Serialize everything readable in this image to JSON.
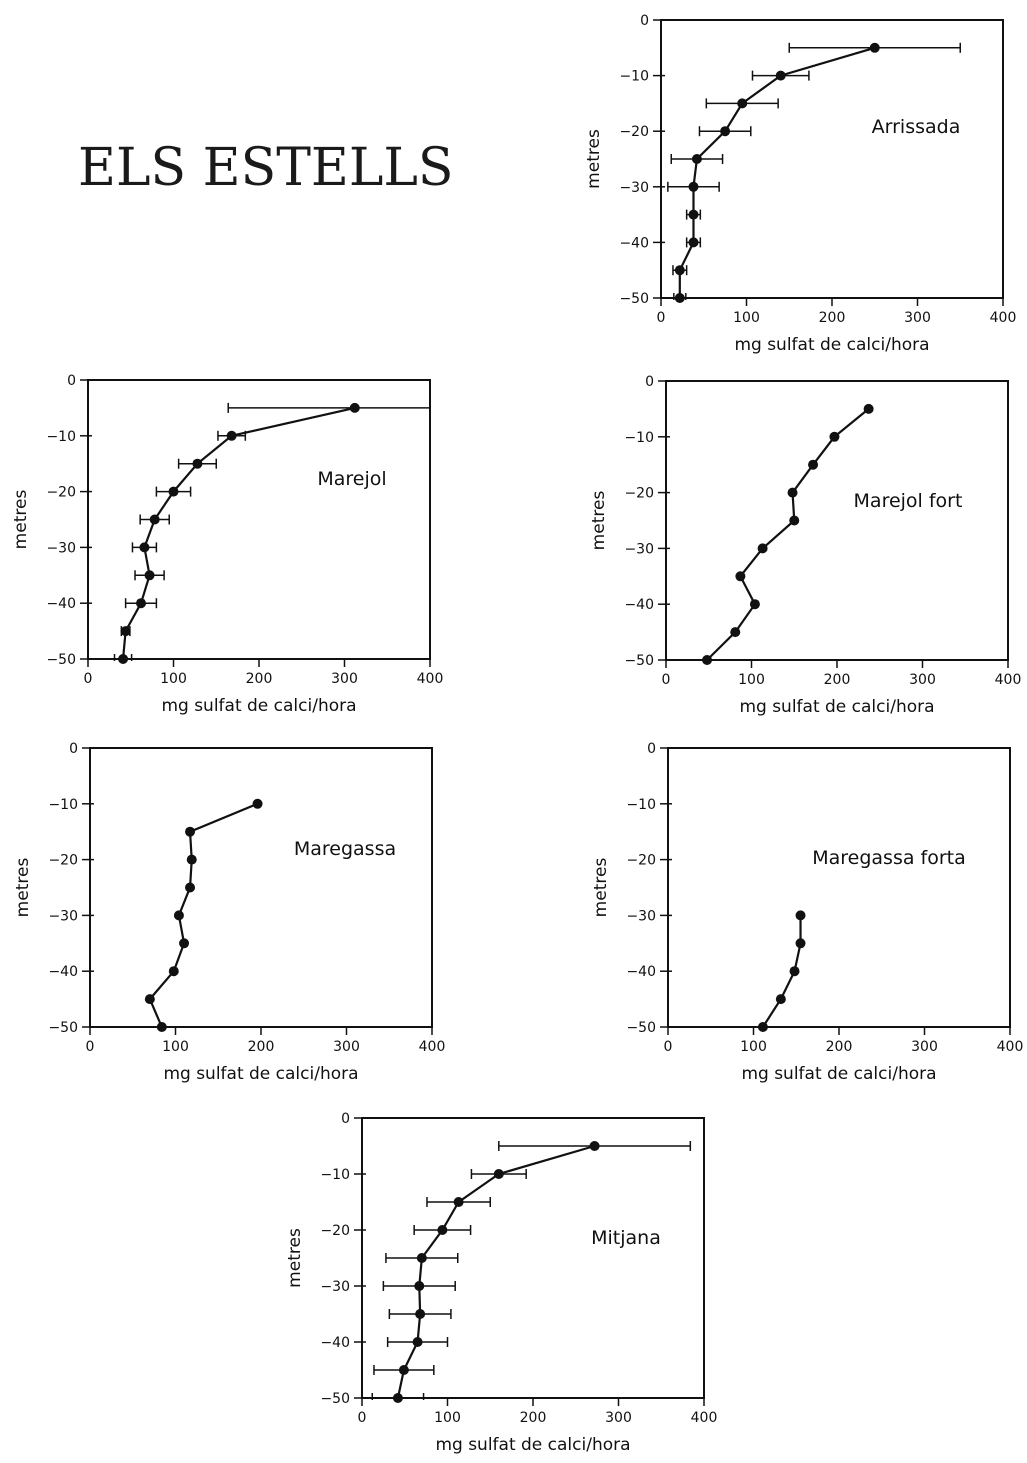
{
  "page": {
    "title": "ELS ESTELLS"
  },
  "chart_data": [
    {
      "type": "line",
      "title": "Arrissada",
      "xlabel": "mg sulfat de calci/hora",
      "ylabel": "metres",
      "xlim": [
        0,
        400
      ],
      "ylim": [
        -50,
        0
      ],
      "xticks": [
        0,
        100,
        200,
        300,
        400
      ],
      "yticks": [
        0,
        -10,
        -20,
        -30,
        -40,
        -50
      ],
      "grid": false,
      "points": [
        {
          "x": 250,
          "y": -5,
          "err": 100
        },
        {
          "x": 140,
          "y": -10,
          "err": 33
        },
        {
          "x": 95,
          "y": -15,
          "err": 42
        },
        {
          "x": 75,
          "y": -20,
          "err": 30
        },
        {
          "x": 42,
          "y": -25,
          "err": 30
        },
        {
          "x": 38,
          "y": -30,
          "err": 30
        },
        {
          "x": 38,
          "y": -35,
          "err": 8
        },
        {
          "x": 38,
          "y": -40,
          "err": 8
        },
        {
          "x": 22,
          "y": -45,
          "err": 8
        },
        {
          "x": 22,
          "y": -50,
          "err": 7
        }
      ]
    },
    {
      "type": "line",
      "title": "Marejol",
      "xlabel": "mg sulfat de calci/hora",
      "ylabel": "metres",
      "xlim": [
        0,
        400
      ],
      "ylim": [
        -50,
        0
      ],
      "xticks": [
        0,
        100,
        200,
        300,
        400
      ],
      "yticks": [
        0,
        -10,
        -20,
        -30,
        -40,
        -50
      ],
      "grid": false,
      "points": [
        {
          "x": 312,
          "y": -5,
          "err": 148
        },
        {
          "x": 168,
          "y": -10,
          "err": 16
        },
        {
          "x": 128,
          "y": -15,
          "err": 22
        },
        {
          "x": 100,
          "y": -20,
          "err": 20
        },
        {
          "x": 78,
          "y": -25,
          "err": 17
        },
        {
          "x": 66,
          "y": -30,
          "err": 14
        },
        {
          "x": 72,
          "y": -35,
          "err": 17
        },
        {
          "x": 62,
          "y": -40,
          "err": 18
        },
        {
          "x": 44,
          "y": -45,
          "err": 5
        },
        {
          "x": 41,
          "y": -50,
          "err": 10
        }
      ]
    },
    {
      "type": "line",
      "title": "Marejol fort",
      "xlabel": "mg sulfat de calci/hora",
      "ylabel": "metres",
      "xlim": [
        0,
        400
      ],
      "ylim": [
        -50,
        0
      ],
      "xticks": [
        0,
        100,
        200,
        300,
        400
      ],
      "yticks": [
        0,
        -10,
        -20,
        -30,
        -40,
        -50
      ],
      "grid": false,
      "points": [
        {
          "x": 237,
          "y": -5
        },
        {
          "x": 197,
          "y": -10
        },
        {
          "x": 172,
          "y": -15
        },
        {
          "x": 148,
          "y": -20
        },
        {
          "x": 150,
          "y": -25
        },
        {
          "x": 113,
          "y": -30
        },
        {
          "x": 87,
          "y": -35
        },
        {
          "x": 104,
          "y": -40
        },
        {
          "x": 81,
          "y": -45
        },
        {
          "x": 48,
          "y": -50
        }
      ]
    },
    {
      "type": "line",
      "title": "Maregassa",
      "xlabel": "mg sulfat de calci/hora",
      "ylabel": "metres",
      "xlim": [
        0,
        400
      ],
      "ylim": [
        -50,
        0
      ],
      "xticks": [
        0,
        100,
        200,
        300,
        400
      ],
      "yticks": [
        0,
        -10,
        -20,
        -30,
        -40,
        -50
      ],
      "grid": false,
      "points": [
        {
          "x": 196,
          "y": -10
        },
        {
          "x": 117,
          "y": -15
        },
        {
          "x": 119,
          "y": -20
        },
        {
          "x": 117,
          "y": -25
        },
        {
          "x": 104,
          "y": -30
        },
        {
          "x": 110,
          "y": -35
        },
        {
          "x": 98,
          "y": -40
        },
        {
          "x": 70,
          "y": -45
        },
        {
          "x": 84,
          "y": -50
        }
      ]
    },
    {
      "type": "line",
      "title": "Maregassa forta",
      "xlabel": "mg sulfat de calci/hora",
      "ylabel": "metres",
      "xlim": [
        0,
        400
      ],
      "ylim": [
        -50,
        0
      ],
      "xticks": [
        0,
        100,
        200,
        300,
        400
      ],
      "yticks": [
        0,
        -10,
        -20,
        -30,
        -40,
        -50
      ],
      "grid": false,
      "points": [
        {
          "x": 155,
          "y": -30
        },
        {
          "x": 155,
          "y": -35
        },
        {
          "x": 148,
          "y": -40
        },
        {
          "x": 132,
          "y": -45
        },
        {
          "x": 111,
          "y": -50
        }
      ]
    },
    {
      "type": "line",
      "title": "Mitjana",
      "xlabel": "mg sulfat de calci/hora",
      "ylabel": "metres",
      "xlim": [
        0,
        400
      ],
      "ylim": [
        -50,
        0
      ],
      "xticks": [
        0,
        100,
        200,
        300,
        400
      ],
      "yticks": [
        0,
        -10,
        -20,
        -30,
        -40,
        -50
      ],
      "grid": false,
      "points": [
        {
          "x": 272,
          "y": -5,
          "err": 112
        },
        {
          "x": 160,
          "y": -10,
          "err": 32
        },
        {
          "x": 113,
          "y": -15,
          "err": 37
        },
        {
          "x": 94,
          "y": -20,
          "err": 33
        },
        {
          "x": 70,
          "y": -25,
          "err": 42
        },
        {
          "x": 67,
          "y": -30,
          "err": 42
        },
        {
          "x": 68,
          "y": -35,
          "err": 36
        },
        {
          "x": 65,
          "y": -40,
          "err": 35
        },
        {
          "x": 49,
          "y": -45,
          "err": 35
        },
        {
          "x": 42,
          "y": -50,
          "err": 30
        }
      ]
    }
  ]
}
